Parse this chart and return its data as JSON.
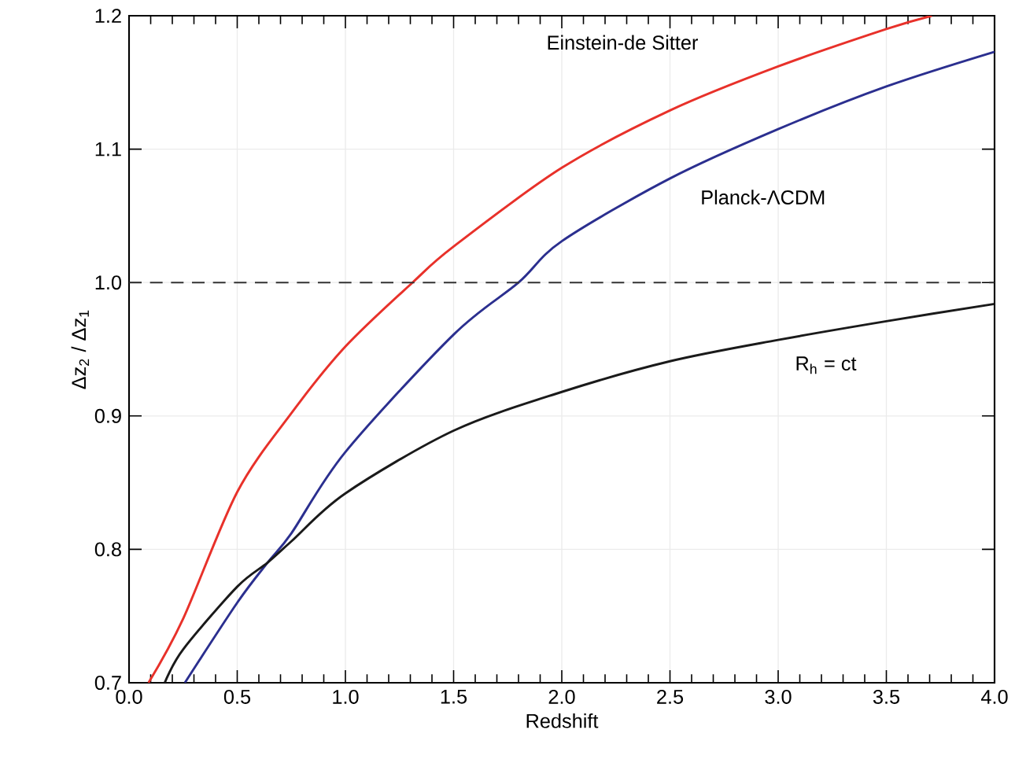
{
  "chart_data": {
    "type": "line",
    "xlabel": "Redshift",
    "ylabel": "Δz$_{2}$ / Δz$_{1}$",
    "xlim": [
      0,
      4
    ],
    "ylim": [
      0.7,
      1.2
    ],
    "xticks": [
      {
        "value": 0,
        "label": "0.0"
      },
      {
        "value": 0.5,
        "label": "0.5"
      },
      {
        "value": 1,
        "label": "1.0"
      },
      {
        "value": 1.5,
        "label": "1.5"
      },
      {
        "value": 2,
        "label": "2.0"
      },
      {
        "value": 2.5,
        "label": "2.5"
      },
      {
        "value": 3,
        "label": "3.0"
      },
      {
        "value": 3.5,
        "label": "3.5"
      },
      {
        "value": 4,
        "label": "4.0"
      }
    ],
    "yticks": [
      {
        "value": 0.7,
        "label": "0.7"
      },
      {
        "value": 0.8,
        "label": "0.8"
      },
      {
        "value": 0.9,
        "label": "0.9"
      },
      {
        "value": 1,
        "label": "1.0"
      },
      {
        "value": 1.1,
        "label": "1.1"
      },
      {
        "value": 1.2,
        "label": "1.2"
      }
    ],
    "grid": true,
    "marker": "none",
    "line_style": "solid",
    "series": [
      {
        "name": "Einstein-de Sitter",
        "color": "#e8312a",
        "x": [
          0.09,
          0.25,
          0.5,
          0.75,
          1.0,
          1.31,
          1.5,
          2.0,
          2.5,
          3.0,
          3.5,
          3.71
        ],
        "values": [
          0.7,
          0.748,
          0.843,
          0.902,
          0.952,
          1.0,
          1.027,
          1.086,
          1.129,
          1.162,
          1.19,
          1.2
        ]
      },
      {
        "name": "Planck-ΛCDM",
        "color": "#2b2f8f",
        "x": [
          0.258,
          0.5,
          0.64,
          0.75,
          1.0,
          1.5,
          1.8,
          2.0,
          2.5,
          3.0,
          3.5,
          4.0
        ],
        "values": [
          0.7,
          0.76,
          0.79,
          0.812,
          0.873,
          0.961,
          1.0,
          1.031,
          1.078,
          1.115,
          1.147,
          1.173
        ]
      },
      {
        "name": "R$_{h}$ = ct",
        "color": "#1a1a1a",
        "x": [
          0.165,
          0.25,
          0.5,
          0.64,
          0.75,
          1.0,
          1.5,
          2.0,
          2.5,
          3.0,
          3.5,
          4.0
        ],
        "values": [
          0.7,
          0.725,
          0.772,
          0.79,
          0.806,
          0.842,
          0.889,
          0.918,
          0.941,
          0.957,
          0.971,
          0.984
        ]
      }
    ],
    "ref_lines": [
      {
        "axis": "y",
        "value": 1.0,
        "line_style": "dashed",
        "color": "#333333"
      }
    ]
  }
}
